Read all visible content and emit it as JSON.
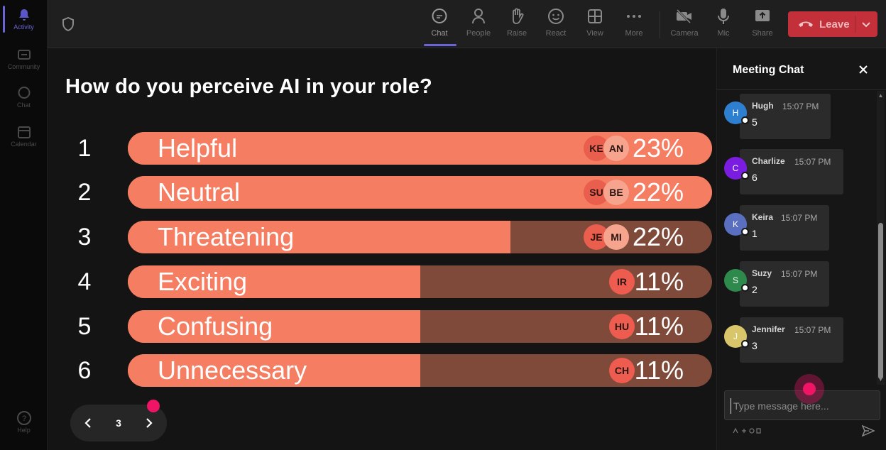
{
  "rail": {
    "items": [
      {
        "label": "Activity",
        "icon": "bell-icon"
      },
      {
        "label": "Community",
        "icon": "community-icon"
      },
      {
        "label": "Chat",
        "icon": "chat-icon"
      },
      {
        "label": "Calendar",
        "icon": "calendar-icon"
      },
      {
        "label": "Help",
        "icon": "help-icon"
      }
    ]
  },
  "toolbar": {
    "buttons": [
      {
        "label": "Chat",
        "icon": "chat-icon"
      },
      {
        "label": "People",
        "icon": "people-icon"
      },
      {
        "label": "Raise",
        "icon": "raise-hand-icon"
      },
      {
        "label": "React",
        "icon": "smiley-icon"
      },
      {
        "label": "View",
        "icon": "grid-icon"
      },
      {
        "label": "More",
        "icon": "more-icon"
      },
      {
        "label": "Camera",
        "icon": "camera-off-icon"
      },
      {
        "label": "Mic",
        "icon": "mic-icon"
      },
      {
        "label": "Share",
        "icon": "share-icon"
      }
    ],
    "leave_label": "Leave",
    "leave_color": "#c4303a",
    "accent_color": "#6a64d6"
  },
  "poll": {
    "question": "How do you perceive AI in your role?",
    "options": [
      {
        "num": "1",
        "label": "Helpful",
        "percent": "23%",
        "fill": 1.0,
        "avatars": [
          "KE",
          "AN"
        ]
      },
      {
        "num": "2",
        "label": "Neutral",
        "percent": "22%",
        "fill": 1.0,
        "avatars": [
          "SU",
          "BE"
        ]
      },
      {
        "num": "3",
        "label": "Threatening",
        "percent": "22%",
        "fill": 0.655,
        "avatars": [
          "JE",
          "MI"
        ]
      },
      {
        "num": "4",
        "label": "Exciting",
        "percent": "11%",
        "fill": 0.5,
        "avatars": [
          "IR"
        ]
      },
      {
        "num": "5",
        "label": "Confusing",
        "percent": "11%",
        "fill": 0.5,
        "avatars": [
          "HU"
        ]
      },
      {
        "num": "6",
        "label": "Unnecessary",
        "percent": "11%",
        "fill": 0.5,
        "avatars": [
          "CH"
        ]
      }
    ],
    "bar_color": "#f57d62",
    "bar_bg_color": "#7f4a3a"
  },
  "pager": {
    "page": "3"
  },
  "chat": {
    "title": "Meeting Chat",
    "messages": [
      {
        "initial": "H",
        "name": "Hugh",
        "time": "15:07 PM",
        "text": "5",
        "color": "#2f7fd0"
      },
      {
        "initial": "C",
        "name": "Charlize",
        "time": "15:07 PM",
        "text": "6",
        "color": "#7a1de0"
      },
      {
        "initial": "K",
        "name": "Keira",
        "time": "15:07 PM",
        "text": "1",
        "color": "#5a6fbf"
      },
      {
        "initial": "S",
        "name": "Suzy",
        "time": "15:07 PM",
        "text": "2",
        "color": "#2e8a4c"
      },
      {
        "initial": "J",
        "name": "Jennifer",
        "time": "15:07 PM",
        "text": "3",
        "color": "#d9c56a"
      }
    ],
    "placeholder": "Type message here..."
  }
}
